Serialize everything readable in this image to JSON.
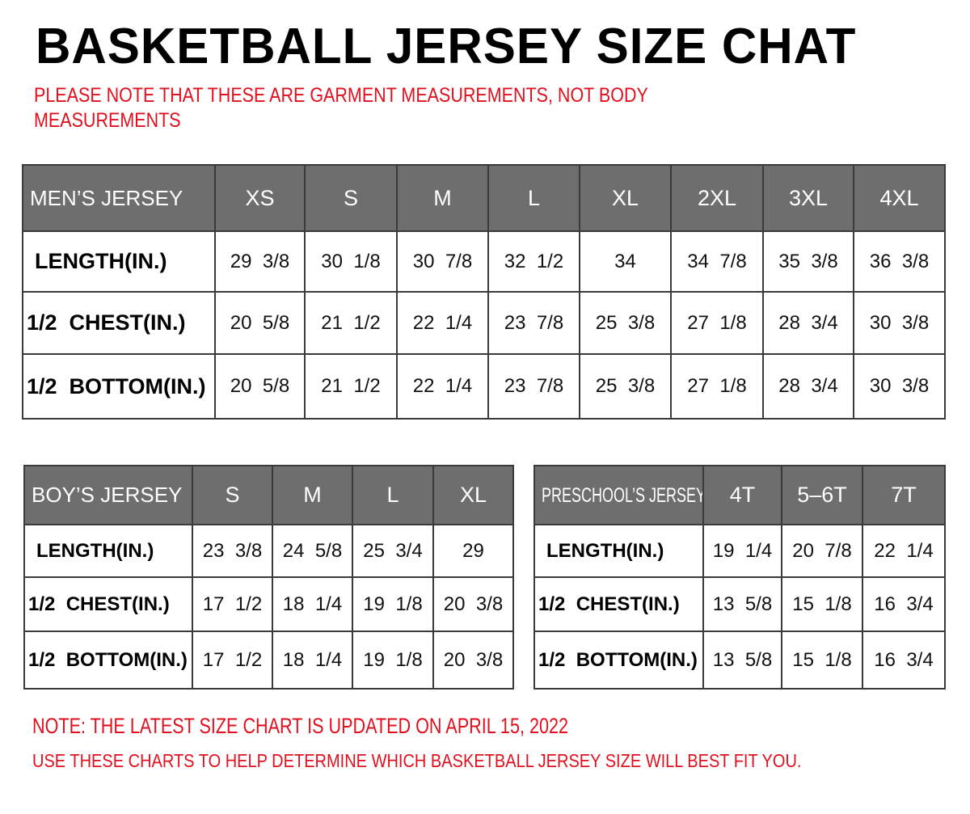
{
  "title": "BASKETBALL JERSEY SIZE CHAT",
  "note_garment": "PLEASE NOTE THAT THESE ARE GARMENT MEASUREMENTS, NOT BODY",
  "note_garment_2": "MEASUREMENTS",
  "note_updated": "NOTE: THE LATEST SIZE CHART IS UPDATED ON APRIL 15, 2022",
  "note_usage": "USE THESE CHARTS TO HELP DETERMINE WHICH  BASKETBALL JERSEY  SIZE WILL BEST FIT YOU.",
  "colors": {
    "header_bg": "#6e6e6e",
    "note_red": "#e0101e"
  },
  "tables": {
    "men": {
      "label": "MEN’S JERSEY",
      "sizes": [
        "XS",
        "S",
        "M",
        "L",
        "XL",
        "2XL",
        "3XL",
        "4XL"
      ],
      "rows": [
        {
          "label": "LENGTH(IN.)",
          "values": [
            "29  3/8",
            "30  1/8",
            "30  7/8",
            "32  1/2",
            "34",
            "34  7/8",
            "35  3/8",
            "36  3/8"
          ]
        },
        {
          "label": "1/2  CHEST(IN.)",
          "values": [
            "20  5/8",
            "21  1/2",
            "22  1/4",
            "23  7/8",
            "25  3/8",
            "27  1/8",
            "28  3/4",
            "30  3/8"
          ]
        },
        {
          "label": "1/2  BOTTOM(IN.)",
          "values": [
            "20  5/8",
            "21  1/2",
            "22  1/4",
            "23  7/8",
            "25  3/8",
            "27  1/8",
            "28  3/4",
            "30  3/8"
          ]
        }
      ]
    },
    "boy": {
      "label": "BOY’S JERSEY",
      "sizes": [
        "S",
        "M",
        "L",
        "XL"
      ],
      "rows": [
        {
          "label": "LENGTH(IN.)",
          "values": [
            "23  3/8",
            "24  5/8",
            "25  3/4",
            "29"
          ]
        },
        {
          "label": "1/2  CHEST(IN.)",
          "values": [
            "17  1/2",
            "18  1/4",
            "19  1/8",
            "20  3/8"
          ]
        },
        {
          "label": "1/2  BOTTOM(IN.)",
          "values": [
            "17  1/2",
            "18  1/4",
            "19  1/8",
            "20  3/8"
          ]
        }
      ]
    },
    "pre": {
      "label": "PRESCHOOL’S JERSEY",
      "sizes": [
        "4T",
        "5–6T",
        "7T"
      ],
      "rows": [
        {
          "label": "LENGTH(IN.)",
          "values": [
            "19  1/4",
            "20  7/8",
            "22  1/4"
          ]
        },
        {
          "label": "1/2  CHEST(IN.)",
          "values": [
            "13  5/8",
            "15  1/8",
            "16  3/4"
          ]
        },
        {
          "label": "1/2  BOTTOM(IN.)",
          "values": [
            "13  5/8",
            "15  1/8",
            "16  3/4"
          ]
        }
      ]
    }
  }
}
